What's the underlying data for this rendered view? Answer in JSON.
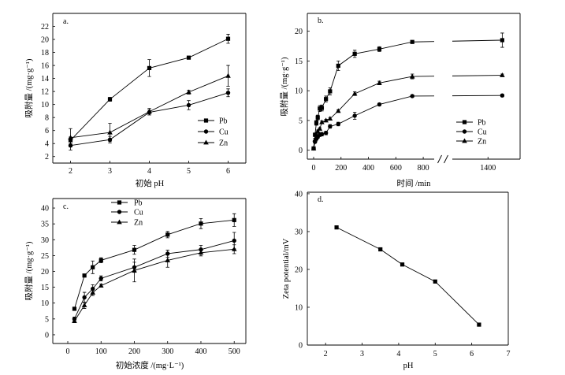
{
  "colors": {
    "ink": "#000000",
    "background": "#ffffff"
  },
  "chart_data": [
    {
      "type": "line",
      "panel_label": "a.",
      "xlabel": "初始 pH",
      "ylabel": "吸附量 /(mg·g⁻¹)",
      "xlim": [
        1.55,
        6.45
      ],
      "ylim": [
        1,
        24
      ],
      "xticks": [
        2,
        3,
        4,
        5,
        6
      ],
      "yticks": [
        2,
        4,
        6,
        8,
        10,
        12,
        14,
        16,
        18,
        20,
        22
      ],
      "legend": "center-right",
      "x": [
        2,
        3,
        4,
        5,
        6
      ],
      "series": [
        {
          "name": "Pb",
          "values": [
            4.5,
            10.8,
            15.6,
            17.2,
            20.1
          ],
          "errors": [
            0.5,
            0.3,
            1.3,
            0.15,
            0.7
          ]
        },
        {
          "name": "Cu",
          "values": [
            3.7,
            4.6,
            8.8,
            9.9,
            11.8
          ],
          "errors": [
            0.7,
            0.5,
            0.4,
            0.7,
            0.6
          ]
        },
        {
          "name": "Zn",
          "values": [
            4.9,
            5.7,
            8.9,
            11.9,
            14.4
          ],
          "errors": [
            1.4,
            1.4,
            0.5,
            0.3,
            1.6
          ]
        }
      ]
    },
    {
      "type": "line",
      "panel_label": "b.",
      "xlabel": "时间 /min",
      "ylabel": "吸附量 /(mg·g⁻¹)",
      "ylim": [
        -1.5,
        23
      ],
      "x_segments": [
        [
          -46,
          880
        ],
        [
          1300,
          1490
        ]
      ],
      "xticks": [
        0,
        200,
        400,
        600,
        800,
        1400
      ],
      "yticks": [
        0,
        5,
        10,
        15,
        20
      ],
      "legend": "bottom-right",
      "x": [
        0,
        10,
        20,
        30,
        45,
        60,
        90,
        120,
        180,
        300,
        480,
        720,
        1440
      ],
      "series": [
        {
          "name": "Pb",
          "values": [
            0.3,
            2.6,
            4.6,
            5.5,
            7.0,
            7.1,
            8.6,
            9.9,
            14.2,
            16.2,
            17.0,
            18.2,
            18.5
          ],
          "errors": [
            0,
            0.3,
            0.4,
            0.4,
            0.5,
            0.5,
            0.5,
            0.6,
            0.8,
            0.6,
            0.4,
            0.2,
            1.2
          ]
        },
        {
          "name": "Cu",
          "values": [
            0.3,
            1.4,
            1.9,
            2.2,
            2.6,
            2.7,
            2.9,
            4.0,
            4.4,
            5.8,
            7.7,
            9.1,
            9.2
          ],
          "errors": [
            0,
            0.2,
            0.2,
            0.2,
            0.3,
            0.3,
            0.3,
            0.3,
            0.3,
            0.6,
            0.2,
            0.2,
            0.2
          ]
        },
        {
          "name": "Zn",
          "values": [
            0.3,
            1.8,
            2.6,
            3.2,
            3.6,
            4.7,
            5.0,
            5.3,
            6.6,
            9.5,
            11.3,
            12.4,
            12.6
          ],
          "errors": [
            0,
            0.2,
            0.2,
            0.2,
            0.2,
            0.2,
            0.2,
            0.2,
            0.2,
            0.3,
            0.3,
            0.4,
            0.2
          ]
        }
      ]
    },
    {
      "type": "line",
      "panel_label": "c.",
      "xlabel": "初始浓度 /(mg·L⁻¹)",
      "ylabel": "吸附量 /(mg·g⁻¹)",
      "xlim": [
        -45,
        535
      ],
      "ylim": [
        -2.75,
        43
      ],
      "xticks": [
        0,
        100,
        200,
        300,
        400,
        500
      ],
      "yticks": [
        0,
        5,
        10,
        15,
        20,
        25,
        30,
        35,
        40
      ],
      "legend": "top-left",
      "x": [
        20,
        50,
        75,
        100,
        200,
        300,
        400,
        500
      ],
      "series": [
        {
          "name": "Pb",
          "values": [
            8.2,
            18.7,
            21.3,
            23.5,
            26.8,
            31.6,
            35.1,
            36.2
          ],
          "errors": [
            0.3,
            0.4,
            2.0,
            0.8,
            1.4,
            1.0,
            1.6,
            2.0
          ]
        },
        {
          "name": "Cu",
          "values": [
            5.0,
            11.8,
            14.5,
            17.8,
            21.3,
            25.6,
            26.9,
            29.7
          ],
          "errors": [
            0.6,
            1.6,
            1.3,
            0.8,
            1.6,
            1.1,
            1.3,
            2.6
          ]
        },
        {
          "name": "Zn",
          "values": [
            4.3,
            9.3,
            13.3,
            15.5,
            20.3,
            23.5,
            25.9,
            27.0
          ],
          "errors": [
            0.5,
            1.0,
            0.9,
            0.5,
            3.6,
            2.2,
            1.0,
            1.4
          ]
        }
      ]
    },
    {
      "type": "line",
      "panel_label": "d.",
      "xlabel": "pH",
      "ylabel": "Zeta potential/mV",
      "xlim": [
        1.5,
        7
      ],
      "ylim": [
        0,
        40.4
      ],
      "xticks": [
        2,
        3,
        4,
        5,
        6,
        7
      ],
      "yticks": [
        0,
        10,
        20,
        30,
        40
      ],
      "x": [
        2.3,
        3.5,
        4.1,
        5.0,
        6.2
      ],
      "series": [
        {
          "values": [
            31.1,
            25.3,
            21.3,
            16.8,
            5.4
          ]
        }
      ]
    }
  ]
}
